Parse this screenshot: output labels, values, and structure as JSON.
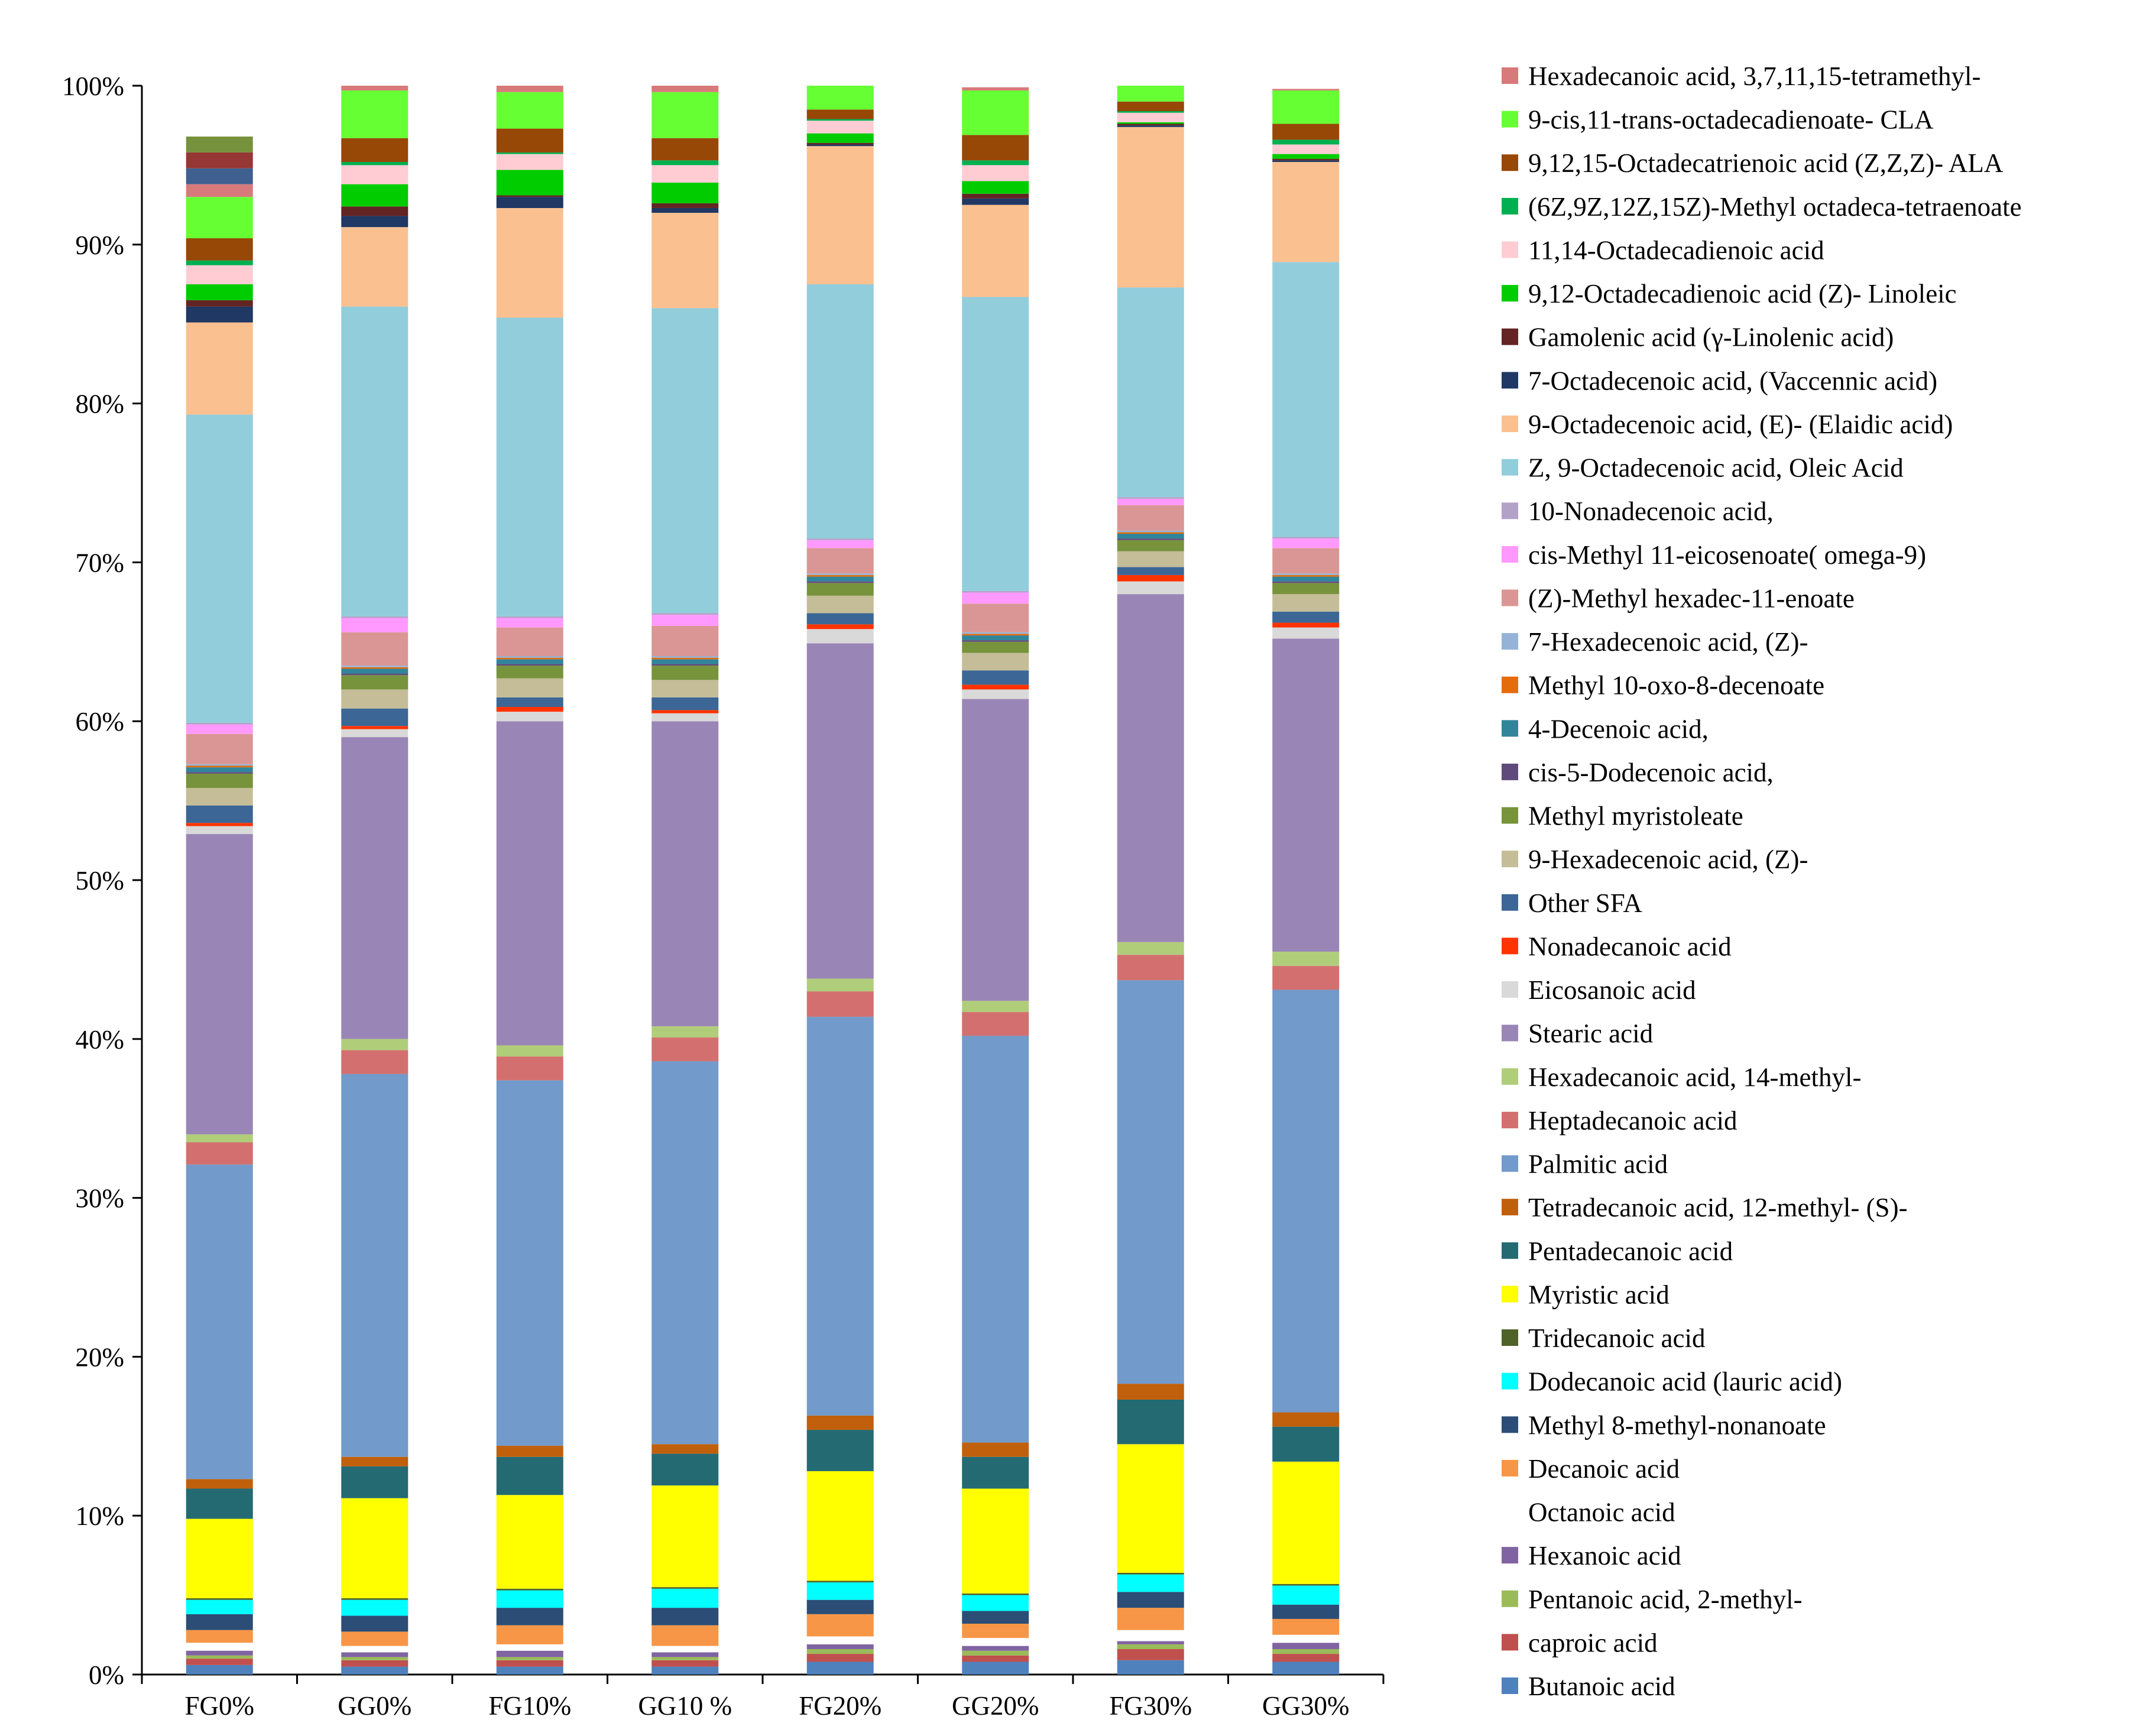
{
  "chart_data": {
    "type": "bar",
    "stacked": true,
    "percent": true,
    "title": "",
    "xlabel": "",
    "ylabel": "",
    "ylim": [
      0,
      100
    ],
    "ytick_values": [
      0,
      10,
      20,
      30,
      40,
      50,
      60,
      70,
      80,
      90,
      100
    ],
    "yticks": [
      "0%",
      "10%",
      "20%",
      "30%",
      "40%",
      "50%",
      "60%",
      "70%",
      "80%",
      "90%",
      "100%"
    ],
    "grid": false,
    "legend_position": "right",
    "categories": [
      "FG0%",
      "GG0%",
      "FG10%",
      "GG10 %",
      "FG20%",
      "GG20%",
      "FG30%",
      "GG30%"
    ],
    "series": [
      {
        "name": "Butanoic acid",
        "color": "#4f81bd",
        "values": [
          0.6,
          0.5,
          0.5,
          0.5,
          0.8,
          0.8,
          0.9,
          0.8
        ]
      },
      {
        "name": "caproic acid",
        "color": "#c0504d",
        "values": [
          0.4,
          0.4,
          0.4,
          0.4,
          0.5,
          0.4,
          0.7,
          0.5
        ]
      },
      {
        "name": "Pentanoic acid, 2-methyl-",
        "color": "#9bbb59",
        "values": [
          0.2,
          0.2,
          0.2,
          0.2,
          0.3,
          0.3,
          0.3,
          0.3
        ]
      },
      {
        "name": "Hexanoic acid",
        "color": "#8064a2",
        "values": [
          0.3,
          0.3,
          0.4,
          0.3,
          0.3,
          0.3,
          0.2,
          0.4
        ]
      },
      {
        "name": "Octanoic acid",
        "color": "#ffffff",
        "values": [
          0.5,
          0.4,
          0.4,
          0.4,
          0.5,
          0.5,
          0.7,
          0.5
        ]
      },
      {
        "name": "Decanoic acid",
        "color": "#f79646",
        "values": [
          0.8,
          0.9,
          1.2,
          1.3,
          1.4,
          0.9,
          1.4,
          1.0
        ]
      },
      {
        "name": "Methyl 8-methyl-nonanoate",
        "color": "#2c4d75",
        "values": [
          1.0,
          1.0,
          1.1,
          1.1,
          0.9,
          0.8,
          1.0,
          0.9
        ]
      },
      {
        "name": "Dodecanoic acid (lauric acid)",
        "color": "#00ffff",
        "values": [
          0.9,
          1.0,
          1.1,
          1.2,
          1.1,
          1.0,
          1.1,
          1.2
        ]
      },
      {
        "name": "Tridecanoic acid",
        "color": "#4f6228",
        "values": [
          0.1,
          0.1,
          0.1,
          0.1,
          0.1,
          0.1,
          0.1,
          0.1
        ]
      },
      {
        "name": "Myristic acid",
        "color": "#ffff00",
        "values": [
          5.0,
          6.3,
          5.9,
          6.4,
          6.9,
          6.6,
          8.1,
          7.7
        ]
      },
      {
        "name": "Pentadecanoic acid",
        "color": "#246a73",
        "values": [
          1.9,
          2.0,
          2.4,
          2.0,
          2.6,
          2.0,
          2.8,
          2.2
        ]
      },
      {
        "name": "Tetradecanoic acid, 12-methyl- (S)-",
        "color": "#c0600c",
        "values": [
          0.6,
          0.6,
          0.7,
          0.6,
          0.9,
          0.9,
          1.0,
          0.9
        ]
      },
      {
        "name": "Palmitic acid",
        "color": "#729aca",
        "values": [
          19.8,
          24.1,
          23.0,
          24.1,
          25.1,
          25.6,
          25.4,
          26.6
        ]
      },
      {
        "name": "Heptadecanoic acid",
        "color": "#d3706f",
        "values": [
          1.4,
          1.5,
          1.5,
          1.5,
          1.6,
          1.5,
          1.6,
          1.5
        ]
      },
      {
        "name": "Hexadecanoic acid, 14-methyl-",
        "color": "#b0cd7a",
        "values": [
          0.5,
          0.7,
          0.7,
          0.7,
          0.8,
          0.7,
          0.8,
          0.9
        ]
      },
      {
        "name": "Stearic acid",
        "color": "#9a86b6",
        "values": [
          18.9,
          19.0,
          20.4,
          19.2,
          21.1,
          19.0,
          21.9,
          19.7
        ]
      },
      {
        "name": "Eicosanoic acid",
        "color": "#d9d9d9",
        "values": [
          0.5,
          0.5,
          0.6,
          0.5,
          0.9,
          0.6,
          0.8,
          0.7
        ]
      },
      {
        "name": "Nonadecanoic acid",
        "color": "#ff3300",
        "values": [
          0.2,
          0.2,
          0.3,
          0.2,
          0.3,
          0.3,
          0.4,
          0.3
        ]
      },
      {
        "name": "Other SFA",
        "color": "#3c6696",
        "values": [
          1.1,
          1.1,
          0.6,
          0.8,
          0.7,
          0.9,
          0.5,
          0.7
        ]
      },
      {
        "name": "9-Hexadecenoic acid, (Z)-",
        "color": "#c4bd97",
        "values": [
          1.1,
          1.2,
          1.2,
          1.1,
          1.1,
          1.1,
          1.0,
          1.1
        ]
      },
      {
        "name": "Methyl myristoleate",
        "color": "#77933c",
        "values": [
          0.9,
          0.9,
          0.8,
          0.9,
          0.8,
          0.7,
          0.7,
          0.7
        ]
      },
      {
        "name": "cis-5-Dodecenoic acid,",
        "color": "#604a7b",
        "values": [
          0.1,
          0.1,
          0.1,
          0.1,
          0.1,
          0.1,
          0.1,
          0.1
        ]
      },
      {
        "name": "4-Decenoic acid,",
        "color": "#31859b",
        "values": [
          0.3,
          0.3,
          0.3,
          0.3,
          0.3,
          0.3,
          0.3,
          0.3
        ]
      },
      {
        "name": "Methyl 10-oxo-8-decenoate",
        "color": "#e46c0a",
        "values": [
          0.1,
          0.1,
          0.1,
          0.1,
          0.1,
          0.1,
          0.1,
          0.1
        ]
      },
      {
        "name": "7-Hexadecenoic acid,  (Z)-",
        "color": "#95b3d7",
        "values": [
          0.1,
          0.1,
          0.1,
          0.1,
          0.1,
          0.1,
          0.1,
          0.1
        ]
      },
      {
        "name": "(Z)-Methyl hexadec-11-enoate",
        "color": "#da9694",
        "values": [
          1.9,
          2.1,
          1.8,
          1.9,
          1.6,
          1.8,
          1.6,
          1.6
        ]
      },
      {
        "name": "cis-Methyl 11-eicosenoate( omega-9)",
        "color": "#ff99ff",
        "values": [
          0.6,
          0.9,
          0.6,
          0.7,
          0.5,
          0.7,
          0.4,
          0.6
        ]
      },
      {
        "name": "10-Nonadecenoic acid,",
        "color": "#b3a2c7",
        "values": [
          0.1,
          0.1,
          0.1,
          0.1,
          0.1,
          0.1,
          0.1,
          0.1
        ]
      },
      {
        "name": "Z, 9-Octadecenoic acid, Oleic Acid",
        "color": "#92cddc",
        "values": [
          19.4,
          19.5,
          18.8,
          19.2,
          16.0,
          18.5,
          13.2,
          17.3
        ]
      },
      {
        "name": "9-Octadecenoic acid, (E)- (Elaidic acid)",
        "color": "#fac090",
        "values": [
          5.8,
          5.0,
          6.9,
          6.0,
          8.7,
          5.8,
          10.1,
          6.3
        ]
      },
      {
        "name": "7-Octadecenoic acid, (Vaccennic acid)",
        "color": "#1f3864",
        "values": [
          1.0,
          0.7,
          0.7,
          0.3,
          0.1,
          0.4,
          0.1,
          0.1
        ]
      },
      {
        "name": "Gamolenic acid (γ-Linolenic acid)",
        "color": "#632523",
        "values": [
          0.4,
          0.6,
          0.1,
          0.3,
          0.1,
          0.3,
          0.1,
          0.1
        ]
      },
      {
        "name": "9,12-Octadecadienoic acid (Z)- Linoleic",
        "color": "#00cc00",
        "values": [
          1.0,
          1.4,
          1.6,
          1.3,
          0.6,
          0.8,
          0.1,
          0.3
        ]
      },
      {
        "name": "11,14-Octadecadienoic acid",
        "color": "#ffccd4",
        "values": [
          1.2,
          1.2,
          1.0,
          1.1,
          0.8,
          1.0,
          0.6,
          0.6
        ]
      },
      {
        "name": "(6Z,9Z,12Z,15Z)-Methyl octadeca-tetraenoate",
        "color": "#00b050",
        "values": [
          0.3,
          0.2,
          0.1,
          0.3,
          0.1,
          0.3,
          0.1,
          0.3
        ]
      },
      {
        "name": "9,12,15-Octadecatrienoic acid (Z,Z,Z)- ALA",
        "color": "#974706",
        "values": [
          1.4,
          1.5,
          1.5,
          1.4,
          0.6,
          1.6,
          0.6,
          1.0
        ]
      },
      {
        "name": "9-cis,11-trans-octadecadienoate- CLA",
        "color": "#66ff33",
        "values": [
          2.6,
          3.0,
          2.3,
          2.9,
          2.0,
          2.8,
          1.5,
          2.1
        ]
      },
      {
        "name": "Hexadecanoic acid, 3,7,11,15-tetramethyl-",
        "color": "#d87a7a",
        "values": [
          0.8,
          0.5,
          0.4,
          0.5,
          0.1,
          0.2,
          0.1,
          0.1
        ]
      },
      {
        "name": "",
        "color": "#3f6090",
        "values": [
          1.0,
          0,
          0,
          0,
          0,
          0,
          0,
          0
        ]
      },
      {
        "name": "",
        "color": "#953735",
        "values": [
          1.0,
          0,
          0,
          0,
          0,
          0,
          0,
          0
        ]
      },
      {
        "name": "",
        "color": "#76923c",
        "values": [
          1.0,
          0,
          0,
          0,
          0,
          0,
          0,
          0
        ]
      }
    ]
  }
}
